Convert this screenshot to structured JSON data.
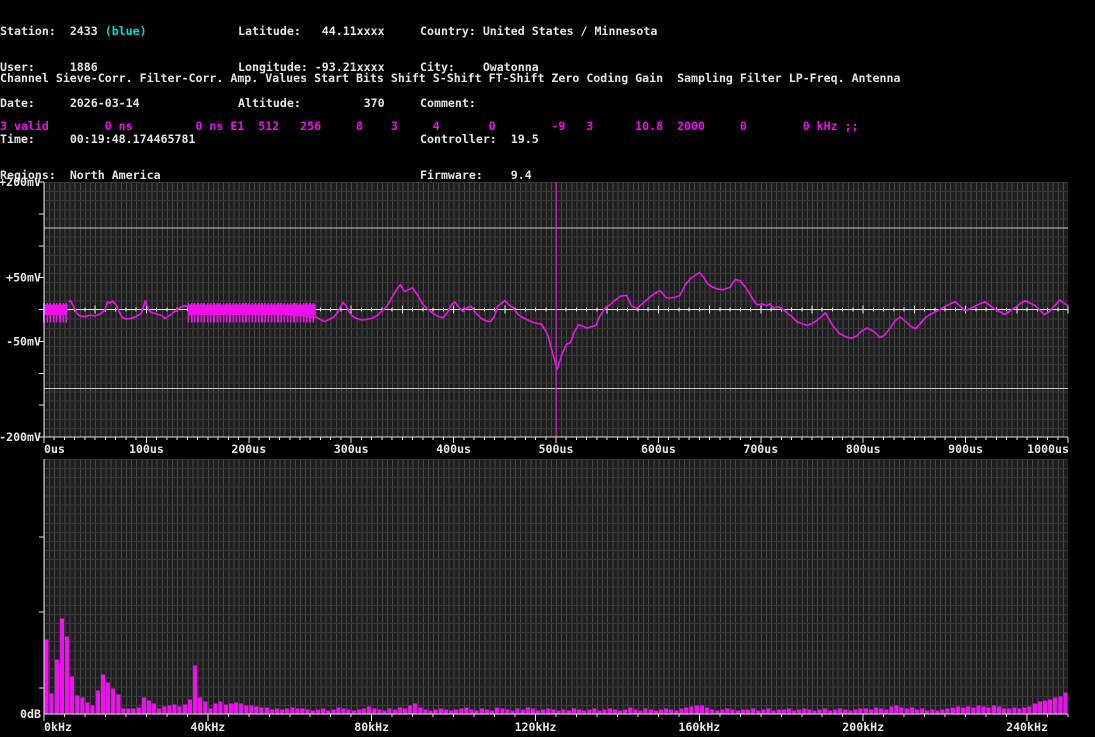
{
  "colors": {
    "background": "#000000",
    "text": "#e4e4e4",
    "accent_cyan": "#00dddd",
    "magenta": "#ee10ee",
    "plot_bg": "#1e1e1e",
    "grid_v": "#474747",
    "grid_h": "#383838",
    "axis": "#e8e8e8",
    "threshold": "#c9c9c9"
  },
  "station_info": {
    "left": [
      {
        "label": "Station:  ",
        "value": "2433 ",
        "note": "(blue)"
      },
      {
        "label": "User:     ",
        "value": "1886",
        "note": ""
      },
      {
        "label": "Date:     ",
        "value": "2026-03-14",
        "note": ""
      },
      {
        "label": "Time:     ",
        "value": "00:19:48.174465781",
        "note": ""
      },
      {
        "label": "Regions:  ",
        "value": "North America",
        "note": ""
      }
    ],
    "middle": [
      {
        "label": "Latitude:",
        "value": "   44.11xxxx"
      },
      {
        "label": "Longitude:",
        "value": " -93.21xxxx"
      },
      {
        "label": "Altitude:",
        "value": "         370"
      }
    ],
    "right": [
      {
        "label": "Country: ",
        "value": "United States / Minnesota"
      },
      {
        "label": "City:    ",
        "value": "Owatonna"
      },
      {
        "label": "Comment: ",
        "value": ""
      },
      {
        "label": "Controller:  ",
        "value": "19.5"
      },
      {
        "label": "Firmware:    ",
        "value": "9.4"
      }
    ]
  },
  "channel_table": {
    "header": "Channel Sieve-Corr. Filter-Corr. Amp. Values Start Bits Shift S-Shift FT-Shift Zero Coding Gain  Sampling Filter LP-Freq. Antenna",
    "row": "3 valid        0 ns         0 ns E1  512   256     8    3     4       0        -9   3      10.8  2000     0        0 kHz ;;"
  },
  "chart_data": [
    {
      "type": "line",
      "name": "signal-waveform",
      "x_unit": "us",
      "y_unit": "mV",
      "xlim": [
        0,
        1000
      ],
      "ylim": [
        -200,
        200
      ],
      "x_tick_labels": [
        "0us",
        "100us",
        "200us",
        "300us",
        "400us",
        "500us",
        "600us",
        "700us",
        "800us",
        "900us",
        "1000us"
      ],
      "x_tick_step_us": 100,
      "x_minor_tick_us": 10,
      "y_tick_labels": [
        {
          "text": "+200mV",
          "mv": 200
        },
        {
          "text": "+50mV",
          "mv": 50
        },
        {
          "text": "-50mV",
          "mv": -50
        },
        {
          "text": "-200mV",
          "mv": -200
        }
      ],
      "y_axis_tick_step_mv": 50,
      "zero_line_mv": 0,
      "threshold_lines_mv": [
        128,
        -124
      ],
      "event_marker_us": 500,
      "bursts": [
        {
          "start_us": 0,
          "end_us": 23,
          "top_mv": 10,
          "bottom_mv": -20,
          "band_top_mv": 8,
          "band_bottom_mv": -9
        },
        {
          "start_us": 141,
          "end_us": 265,
          "top_mv": 10,
          "bottom_mv": -20,
          "band_top_mv": 8,
          "band_bottom_mv": -9
        }
      ],
      "samples_us_mv": [
        [
          24,
          12
        ],
        [
          26,
          14
        ],
        [
          29,
          4
        ],
        [
          32,
          -6
        ],
        [
          35,
          -10
        ],
        [
          40,
          -11
        ],
        [
          45,
          -9
        ],
        [
          50,
          -10
        ],
        [
          55,
          -7
        ],
        [
          59,
          -2
        ],
        [
          62,
          12
        ],
        [
          64,
          10
        ],
        [
          67,
          13
        ],
        [
          70,
          8
        ],
        [
          73,
          -2
        ],
        [
          76,
          -12
        ],
        [
          80,
          -15
        ],
        [
          85,
          -14
        ],
        [
          90,
          -11
        ],
        [
          95,
          -6
        ],
        [
          99,
          14
        ],
        [
          102,
          0
        ],
        [
          105,
          -5
        ],
        [
          108,
          -6
        ],
        [
          112,
          -8
        ],
        [
          116,
          -10
        ],
        [
          118,
          -14
        ],
        [
          122,
          -10
        ],
        [
          126,
          -5
        ],
        [
          130,
          0
        ],
        [
          134,
          4
        ],
        [
          137,
          6
        ],
        [
          140,
          5
        ],
        [
          266,
          -12
        ],
        [
          270,
          -16
        ],
        [
          274,
          -19
        ],
        [
          278,
          -16
        ],
        [
          283,
          -12
        ],
        [
          287,
          -4
        ],
        [
          290,
          6
        ],
        [
          292,
          11
        ],
        [
          295,
          6
        ],
        [
          298,
          -4
        ],
        [
          301,
          -10
        ],
        [
          305,
          -14
        ],
        [
          309,
          -16
        ],
        [
          313,
          -16
        ],
        [
          317,
          -15
        ],
        [
          321,
          -13
        ],
        [
          326,
          -9
        ],
        [
          330,
          -2
        ],
        [
          335,
          5
        ],
        [
          340,
          20
        ],
        [
          345,
          33
        ],
        [
          348,
          39
        ],
        [
          352,
          28
        ],
        [
          356,
          31
        ],
        [
          360,
          34
        ],
        [
          365,
          22
        ],
        [
          370,
          8
        ],
        [
          375,
          0
        ],
        [
          380,
          -6
        ],
        [
          385,
          -11
        ],
        [
          390,
          -13
        ],
        [
          394,
          -4
        ],
        [
          398,
          8
        ],
        [
          401,
          12
        ],
        [
          405,
          4
        ],
        [
          409,
          -3
        ],
        [
          413,
          3
        ],
        [
          417,
          5
        ],
        [
          422,
          -6
        ],
        [
          427,
          -14
        ],
        [
          432,
          -18
        ],
        [
          436,
          -19
        ],
        [
          440,
          -10
        ],
        [
          443,
          5
        ],
        [
          447,
          10
        ],
        [
          450,
          14
        ],
        [
          454,
          7
        ],
        [
          458,
          3
        ],
        [
          463,
          -8
        ],
        [
          468,
          -13
        ],
        [
          473,
          -17
        ],
        [
          479,
          -21
        ],
        [
          486,
          -23
        ],
        [
          492,
          -40
        ],
        [
          497,
          -70
        ],
        [
          501,
          -94
        ],
        [
          506,
          -70
        ],
        [
          510,
          -55
        ],
        [
          514,
          -52
        ],
        [
          518,
          -35
        ],
        [
          522,
          -24
        ],
        [
          526,
          -26
        ],
        [
          530,
          -29
        ],
        [
          535,
          -27
        ],
        [
          539,
          -25
        ],
        [
          543,
          -10
        ],
        [
          548,
          3
        ],
        [
          553,
          8
        ],
        [
          558,
          15
        ],
        [
          563,
          21
        ],
        [
          569,
          22
        ],
        [
          574,
          5
        ],
        [
          579,
          2
        ],
        [
          585,
          10
        ],
        [
          592,
          20
        ],
        [
          599,
          28
        ],
        [
          602,
          29
        ],
        [
          608,
          18
        ],
        [
          616,
          19
        ],
        [
          621,
          22
        ],
        [
          626,
          38
        ],
        [
          631,
          48
        ],
        [
          636,
          54
        ],
        [
          640,
          58
        ],
        [
          644,
          51
        ],
        [
          648,
          40
        ],
        [
          653,
          35
        ],
        [
          658,
          32
        ],
        [
          663,
          31
        ],
        [
          670,
          35
        ],
        [
          675,
          47
        ],
        [
          680,
          45
        ],
        [
          685,
          35
        ],
        [
          689,
          25
        ],
        [
          694,
          12
        ],
        [
          697,
          7
        ],
        [
          701,
          9
        ],
        [
          706,
          6
        ],
        [
          709,
          9
        ],
        [
          712,
          2
        ],
        [
          717,
          4
        ],
        [
          722,
          0
        ],
        [
          727,
          -7
        ],
        [
          731,
          -12
        ],
        [
          735,
          -19
        ],
        [
          740,
          -22
        ],
        [
          745,
          -25
        ],
        [
          750,
          -22
        ],
        [
          755,
          -17
        ],
        [
          760,
          -10
        ],
        [
          763,
          -5
        ],
        [
          770,
          -25
        ],
        [
          777,
          -38
        ],
        [
          785,
          -44
        ],
        [
          789,
          -45
        ],
        [
          794,
          -41
        ],
        [
          799,
          -33
        ],
        [
          804,
          -29
        ],
        [
          811,
          -35
        ],
        [
          816,
          -44
        ],
        [
          821,
          -40
        ],
        [
          826,
          -30
        ],
        [
          831,
          -18
        ],
        [
          836,
          -12
        ],
        [
          841,
          -18
        ],
        [
          846,
          -26
        ],
        [
          851,
          -30
        ],
        [
          856,
          -22
        ],
        [
          860,
          -14
        ],
        [
          865,
          -8
        ],
        [
          870,
          -4
        ],
        [
          875,
          0
        ],
        [
          880,
          5
        ],
        [
          885,
          9
        ],
        [
          890,
          12
        ],
        [
          895,
          5
        ],
        [
          899,
          -2
        ],
        [
          904,
          1
        ],
        [
          909,
          5
        ],
        [
          914,
          9
        ],
        [
          919,
          12
        ],
        [
          924,
          6
        ],
        [
          929,
          0
        ],
        [
          934,
          -4
        ],
        [
          938,
          -8
        ],
        [
          943,
          -3
        ],
        [
          948,
          3
        ],
        [
          953,
          9
        ],
        [
          958,
          14
        ],
        [
          963,
          10
        ],
        [
          968,
          6
        ],
        [
          973,
          -2
        ],
        [
          977,
          -8
        ],
        [
          982,
          -3
        ],
        [
          987,
          6
        ],
        [
          992,
          15
        ],
        [
          996,
          10
        ],
        [
          1000,
          6
        ]
      ]
    },
    {
      "type": "bar",
      "name": "frequency-spectrum",
      "x_unit": "kHz",
      "y_label": "0dB",
      "xlim": [
        0,
        250
      ],
      "x_tick_labels": [
        "0kHz",
        "40kHz",
        "80kHz",
        "120kHz",
        "160kHz",
        "200kHz",
        "240kHz"
      ],
      "x_tick_step_khz": 40,
      "x_minor_tick_khz": 5,
      "bin_width_khz": 1.25,
      "bar_heights_rel": [
        74,
        20,
        54,
        95,
        77,
        37,
        18,
        16,
        11,
        8,
        23,
        39,
        31,
        25,
        19,
        5,
        5,
        5,
        6,
        16,
        13,
        10,
        5,
        7,
        8,
        9,
        7,
        9,
        14,
        48,
        16,
        12,
        5,
        10,
        12,
        9,
        10,
        11,
        10,
        8,
        8,
        7,
        6,
        6,
        4,
        5,
        4,
        5,
        6,
        5,
        5,
        4,
        3,
        4,
        5,
        3,
        4,
        6,
        5,
        4,
        3,
        4,
        5,
        7,
        5,
        4,
        3,
        5,
        4,
        6,
        5,
        8,
        10,
        6,
        4,
        3,
        4,
        5,
        4,
        3,
        4,
        5,
        6,
        4,
        3,
        5,
        4,
        3,
        6,
        5,
        4,
        3,
        5,
        4,
        6,
        5,
        3,
        4,
        5,
        4,
        3,
        4,
        3,
        5,
        4,
        3,
        4,
        5,
        3,
        4,
        5,
        4,
        3,
        4,
        6,
        4,
        3,
        5,
        4,
        3,
        4,
        5,
        4,
        3,
        5,
        6,
        7,
        8,
        8,
        6,
        4,
        3,
        4,
        5,
        4,
        3,
        4,
        4,
        5,
        3,
        4,
        5,
        3,
        4,
        4,
        5,
        3,
        4,
        5,
        4,
        3,
        4,
        5,
        3,
        4,
        5,
        4,
        3,
        4,
        5,
        5,
        4,
        6,
        5,
        4,
        7,
        8,
        6,
        5,
        6,
        4,
        5,
        3,
        4,
        3,
        4,
        5,
        6,
        7,
        6,
        7,
        6,
        8,
        7,
        6,
        8,
        7,
        5,
        5,
        6,
        5,
        6,
        7,
        10,
        12,
        13,
        14,
        16,
        17,
        21
      ]
    }
  ]
}
